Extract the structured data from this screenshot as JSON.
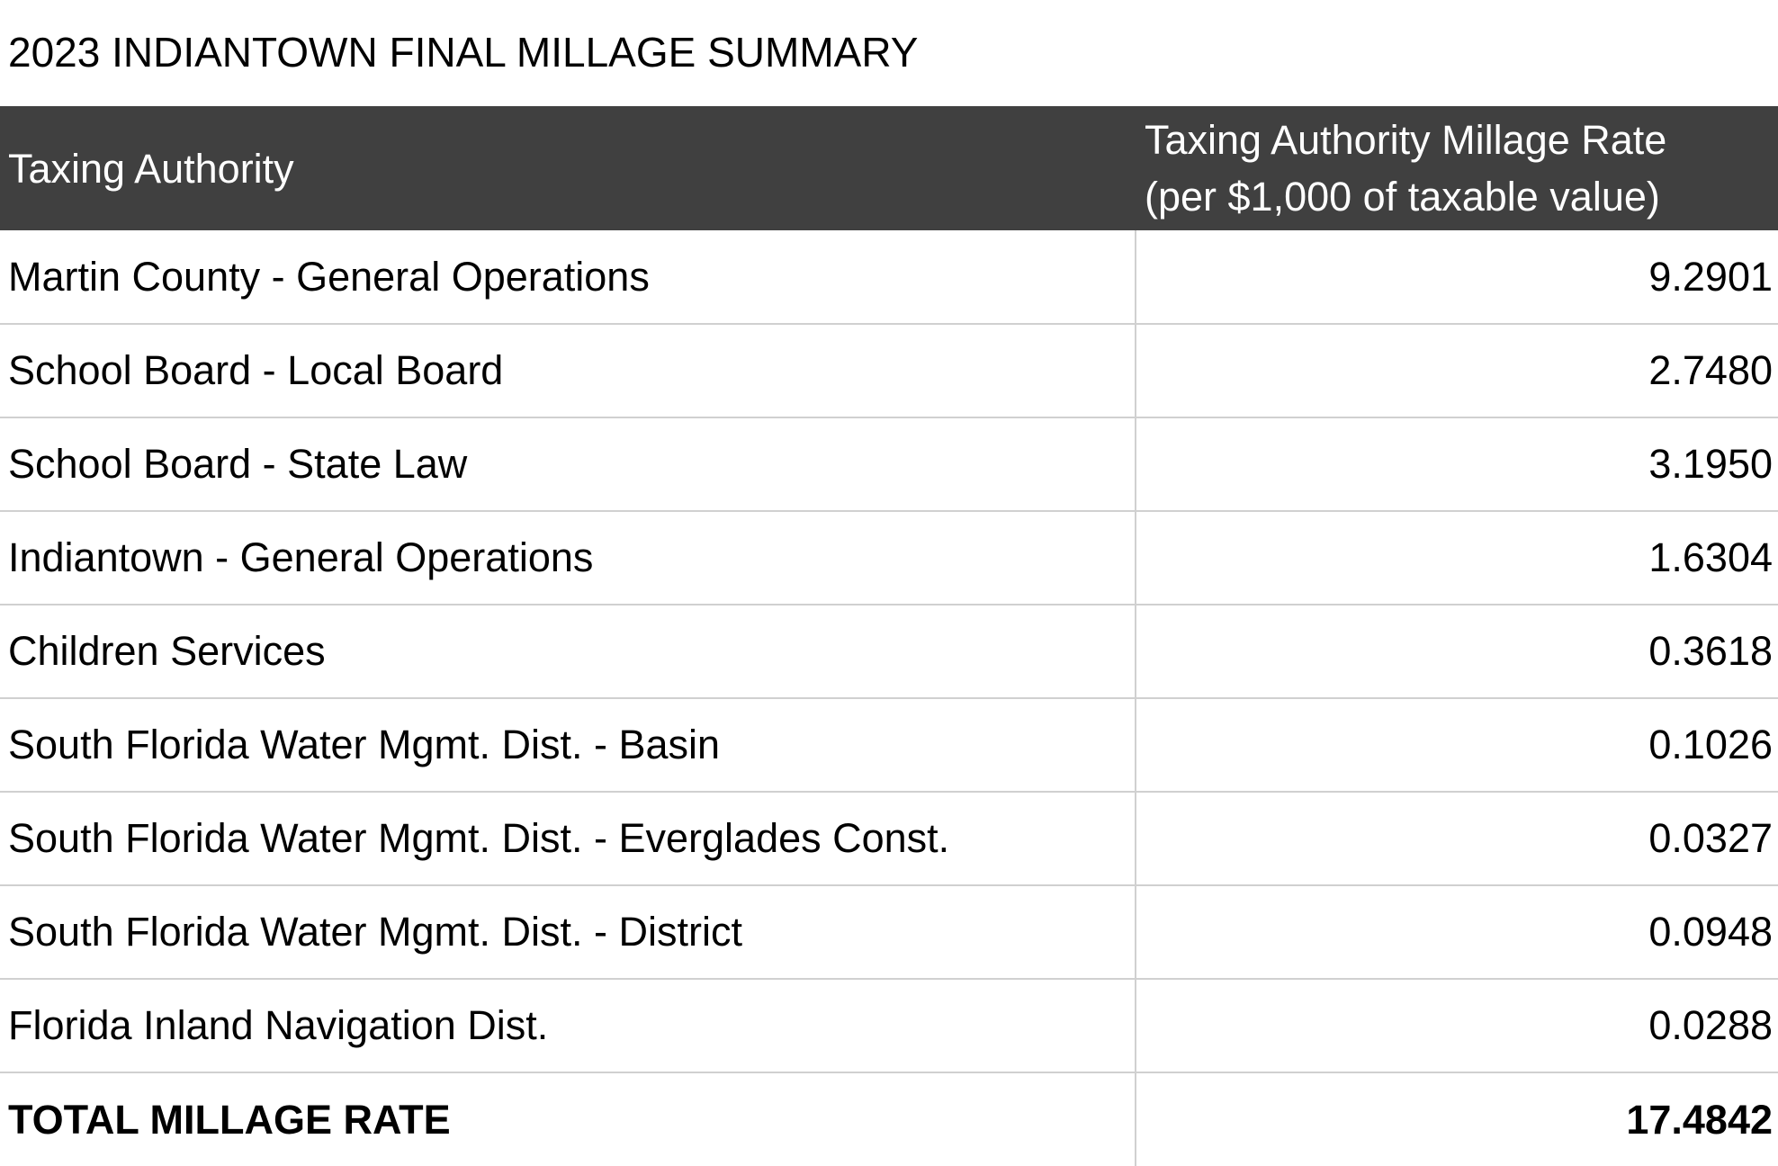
{
  "document": {
    "title": "2023 INDIANTOWN FINAL MILLAGE SUMMARY"
  },
  "table": {
    "headers": {
      "authority": "Taxing Authority",
      "rate_line1": "Taxing Authority Millage Rate",
      "rate_line2": "(per $1,000 of taxable value)"
    },
    "rows": [
      {
        "authority": "Martin County - General Operations",
        "rate": "9.2901"
      },
      {
        "authority": "School Board - Local Board",
        "rate": "2.7480"
      },
      {
        "authority": "School Board - State Law",
        "rate": "3.1950"
      },
      {
        "authority": "Indiantown - General Operations",
        "rate": "1.6304"
      },
      {
        "authority": "Children Services",
        "rate": "0.3618"
      },
      {
        "authority": "South Florida Water Mgmt. Dist. - Basin",
        "rate": "0.1026"
      },
      {
        "authority": "South Florida Water Mgmt. Dist. - Everglades Const.",
        "rate": "0.0327"
      },
      {
        "authority": "South Florida Water Mgmt. Dist. - District",
        "rate": "0.0948"
      },
      {
        "authority": "Florida Inland Navigation Dist.",
        "rate": "0.0288"
      }
    ],
    "total": {
      "authority": "TOTAL MILLAGE RATE",
      "rate": "17.4842"
    }
  },
  "colors": {
    "header_background": "#404040",
    "header_text": "#ffffff",
    "grid_line": "#d0d0d0"
  }
}
